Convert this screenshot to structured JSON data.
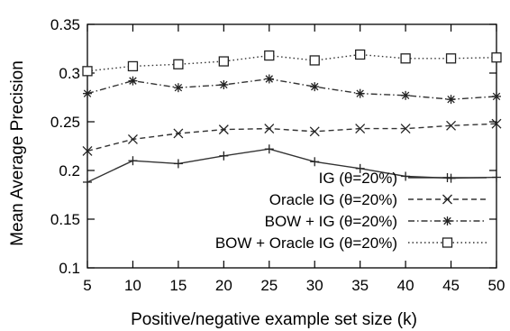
{
  "chart_data": {
    "type": "line",
    "title": "",
    "xlabel": "Positive/negative example set size (k)",
    "ylabel": "Mean Average Precision",
    "x": [
      5,
      10,
      15,
      20,
      25,
      30,
      35,
      40,
      45,
      50
    ],
    "xlim": [
      5,
      50
    ],
    "ylim": [
      0.1,
      0.35
    ],
    "xticks": [
      5,
      10,
      15,
      20,
      25,
      30,
      35,
      40,
      45,
      50
    ],
    "yticks": [
      0.1,
      0.15,
      0.2,
      0.25,
      0.3,
      0.35
    ],
    "ytick_labels": [
      "0.1",
      "0.15",
      "0.2",
      "0.25",
      "0.3",
      "0.35"
    ],
    "grid": false,
    "legend_position": "bottom-right",
    "series": [
      {
        "name": "IG (θ=20%)",
        "marker": "plus",
        "line": "solid",
        "values": [
          0.188,
          0.21,
          0.207,
          0.215,
          0.222,
          0.209,
          0.202,
          0.194,
          0.192,
          0.193
        ]
      },
      {
        "name": "Oracle IG (θ=20%)",
        "marker": "x",
        "line": "dashed",
        "values": [
          0.22,
          0.232,
          0.238,
          0.242,
          0.243,
          0.24,
          0.243,
          0.243,
          0.246,
          0.248
        ]
      },
      {
        "name": "BOW + IG (θ=20%)",
        "marker": "star",
        "line": "dashdot",
        "values": [
          0.279,
          0.292,
          0.285,
          0.288,
          0.294,
          0.286,
          0.279,
          0.277,
          0.273,
          0.276
        ]
      },
      {
        "name": "BOW + Oracle IG (θ=20%)",
        "marker": "square",
        "line": "dotted",
        "values": [
          0.302,
          0.307,
          0.309,
          0.312,
          0.318,
          0.313,
          0.319,
          0.315,
          0.315,
          0.316
        ]
      }
    ]
  }
}
